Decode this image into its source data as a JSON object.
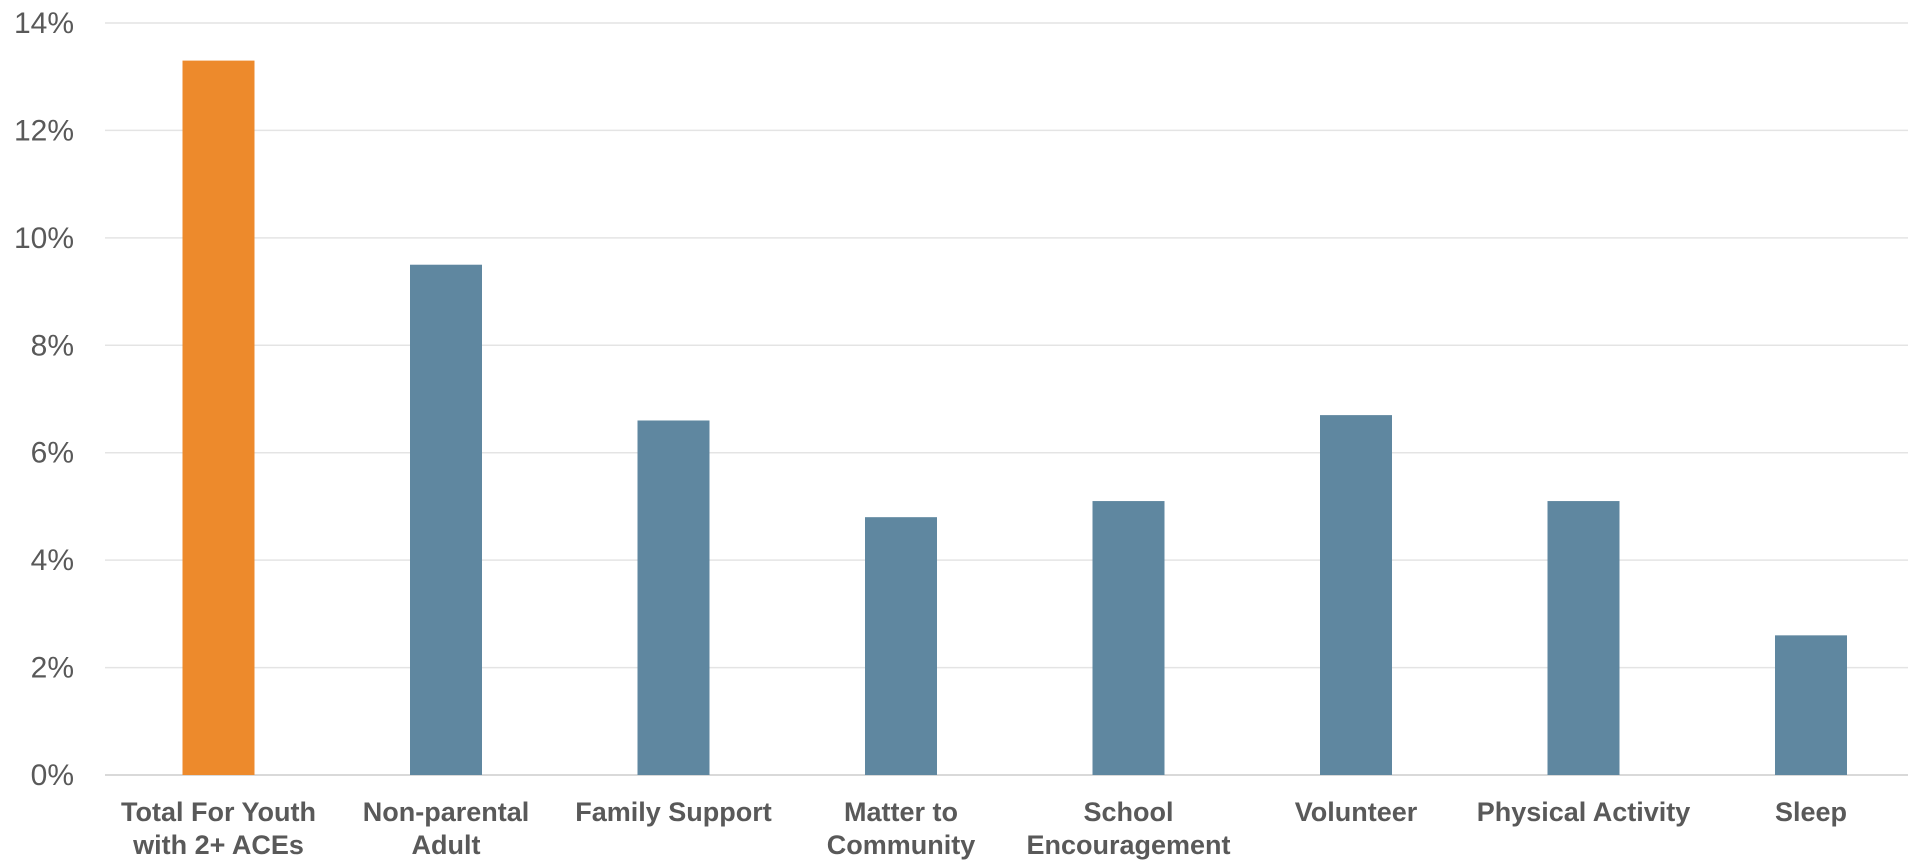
{
  "chart_data": {
    "type": "bar",
    "categories": [
      [
        "Total For Youth",
        "with  2+ ACEs"
      ],
      [
        "Non-parental",
        "Adult"
      ],
      [
        "Family Support"
      ],
      [
        "Matter to",
        "Community"
      ],
      [
        "School",
        "Encouragement"
      ],
      [
        "Volunteer"
      ],
      [
        "Physical Activity"
      ],
      [
        "Sleep"
      ]
    ],
    "values": [
      13.3,
      9.5,
      6.6,
      4.8,
      5.1,
      6.7,
      5.1,
      2.6
    ],
    "bar_colors": [
      "#ED8A2C",
      "#5F87A0",
      "#5F87A0",
      "#5F87A0",
      "#5F87A0",
      "#5F87A0",
      "#5F87A0",
      "#5F87A0"
    ],
    "y_ticks": [
      "0%",
      "2%",
      "4%",
      "6%",
      "8%",
      "10%",
      "12%",
      "14%"
    ],
    "y_unit": "%",
    "ylim": [
      0,
      14
    ],
    "grid": true,
    "legend": "none",
    "title": "",
    "xlabel": "",
    "ylabel": ""
  }
}
